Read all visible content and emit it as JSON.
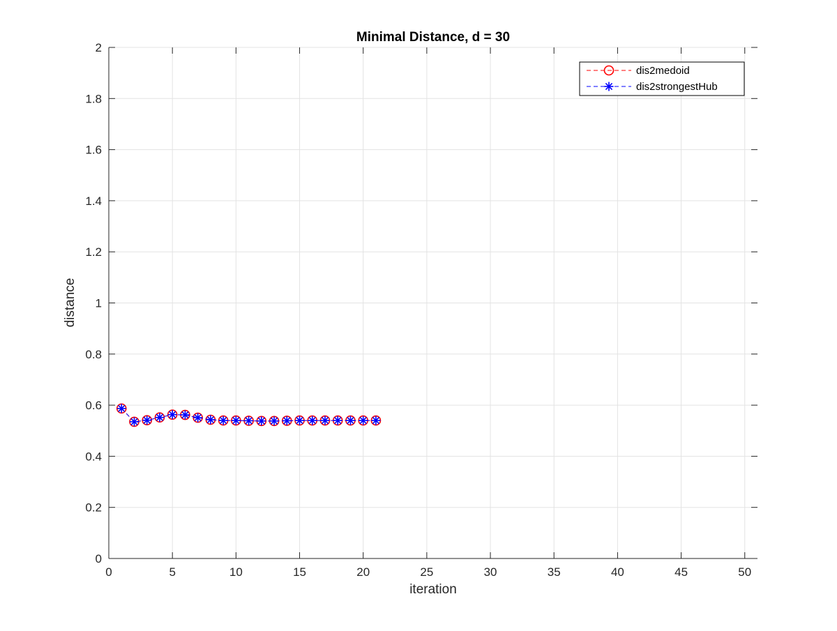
{
  "chart_data": {
    "type": "line",
    "title": "Minimal Distance, d = 30",
    "xlabel": "iteration",
    "ylabel": "distance",
    "xlim": [
      0,
      51
    ],
    "ylim": [
      0,
      2
    ],
    "x_ticks": [
      0,
      5,
      10,
      15,
      20,
      25,
      30,
      35,
      40,
      45,
      50
    ],
    "x_tick_labels": [
      "0",
      "5",
      "10",
      "15",
      "20",
      "25",
      "30",
      "35",
      "40",
      "45",
      "50"
    ],
    "y_ticks": [
      0,
      0.2,
      0.4,
      0.6,
      0.8,
      1,
      1.2,
      1.4,
      1.6,
      1.8,
      2
    ],
    "y_tick_labels": [
      "0",
      "0.2",
      "0.4",
      "0.6",
      "0.8",
      "1",
      "1.2",
      "1.4",
      "1.6",
      "1.8",
      "2"
    ],
    "grid": true,
    "legend_position": "top-right",
    "x": [
      1,
      2,
      3,
      4,
      5,
      6,
      7,
      8,
      9,
      10,
      11,
      12,
      13,
      14,
      15,
      16,
      17,
      18,
      19,
      20,
      21
    ],
    "series": [
      {
        "name": "dis2medoid",
        "color": "#ff0000",
        "marker": "circle",
        "line_style": "dashed",
        "values": [
          0.587,
          0.535,
          0.541,
          0.552,
          0.563,
          0.562,
          0.551,
          0.543,
          0.54,
          0.54,
          0.539,
          0.538,
          0.538,
          0.539,
          0.54,
          0.54,
          0.54,
          0.54,
          0.54,
          0.54,
          0.54
        ]
      },
      {
        "name": "dis2strongestHub",
        "color": "#0000ff",
        "marker": "asterisk",
        "line_style": "dashed",
        "values": [
          0.587,
          0.535,
          0.541,
          0.552,
          0.563,
          0.562,
          0.551,
          0.543,
          0.54,
          0.54,
          0.539,
          0.538,
          0.538,
          0.539,
          0.54,
          0.54,
          0.54,
          0.54,
          0.54,
          0.54,
          0.54
        ]
      }
    ]
  }
}
